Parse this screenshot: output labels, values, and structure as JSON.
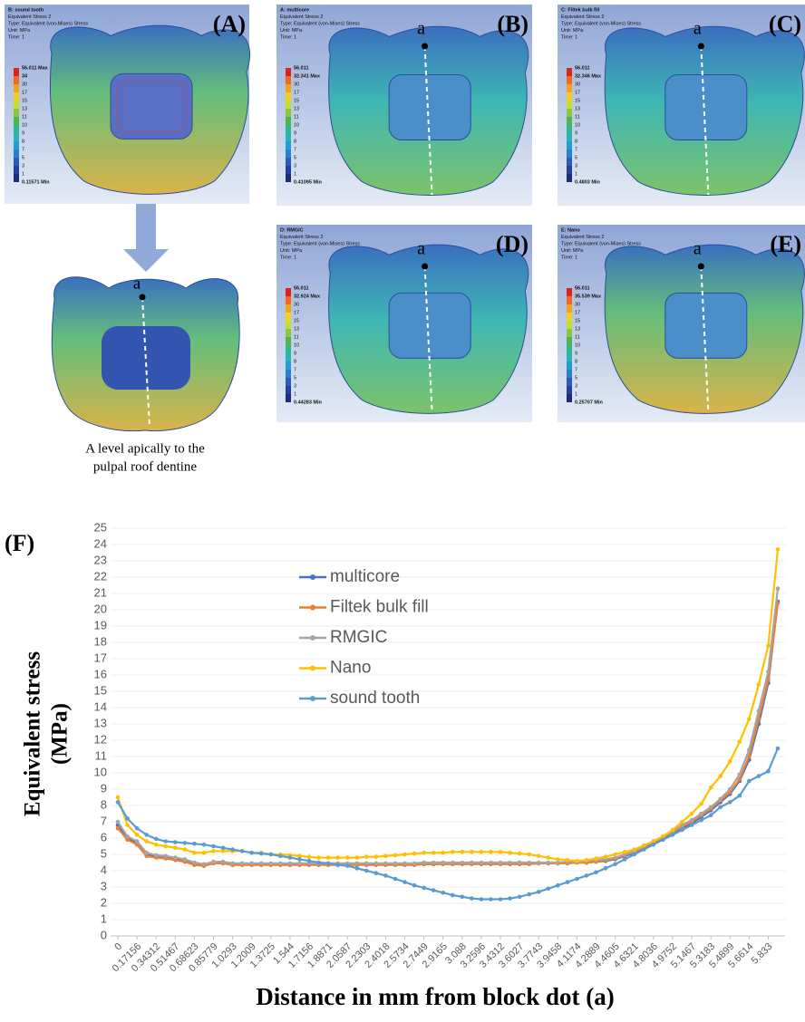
{
  "panels": [
    {
      "letter": "(A)",
      "header": [
        "B: sound tooth",
        "Equivalent Stress 2",
        "Type: Equivalent (von-Mises) Stress",
        "Unit: MPa",
        "Time: 1"
      ],
      "legend": [
        "56.011 Max",
        "34",
        "30",
        "17",
        "15",
        "13",
        "11",
        "10",
        "9",
        "8",
        "7",
        "5",
        "3",
        "1",
        "0.11571 Min"
      ]
    },
    {
      "letter": "(B)",
      "point_label": "a",
      "header": [
        "A: multicore",
        "Equivalent Stress 2",
        "Type: Equivalent (von-Mises) Stress",
        "Unit: MPa",
        "Time: 1"
      ],
      "legend": [
        "56.011",
        "32.341 Max",
        "30",
        "17",
        "15",
        "13",
        "11",
        "10",
        "9",
        "8",
        "7",
        "5",
        "3",
        "1",
        "0.41095 Min"
      ]
    },
    {
      "letter": "(C)",
      "point_label": "a",
      "header": [
        "C: Filtek bulk fill",
        "Equivalent Stress 2",
        "Type: Equivalent (von-Mises) Stress",
        "Unit: MPa",
        "Time: 1"
      ],
      "legend": [
        "56.011",
        "32.346 Max",
        "30",
        "17",
        "15",
        "13",
        "11",
        "10",
        "9",
        "8",
        "7",
        "5",
        "3",
        "1",
        "0.4803 Min"
      ]
    },
    {
      "letter": "(D)",
      "point_label": "a",
      "header": [
        "D: RMGIC",
        "Equivalent Stress 2",
        "Type: Equivalent (von-Mises) Stress",
        "Unit: MPa",
        "Time: 1"
      ],
      "legend": [
        "56.011",
        "32.924 Max",
        "30",
        "17",
        "15",
        "13",
        "11",
        "10",
        "9",
        "8",
        "7",
        "5",
        "3",
        "1",
        "0.44283 Min"
      ]
    },
    {
      "letter": "(E)",
      "point_label": "a",
      "header": [
        "E: Nano",
        "Equivalent Stress 2",
        "Type: Equivalent (von-Mises) Stress",
        "Unit: MPa",
        "Time: 1"
      ],
      "legend": [
        "56.011",
        "35.539 Max",
        "30",
        "17",
        "15",
        "13",
        "11",
        "10",
        "9",
        "8",
        "7",
        "5",
        "3",
        "1",
        "0.25707 Min"
      ]
    }
  ],
  "zoom": {
    "point_label": "a",
    "caption": [
      "A level apically to the",
      "pulpal roof dentine"
    ]
  },
  "chart_data": {
    "type": "line",
    "panel_label": "(F)",
    "xlabel": "Distance in mm from block dot (a)",
    "ylabel": [
      "Equivalent stress",
      "(MPa)"
    ],
    "categories": [
      "0",
      null,
      "0.17156",
      null,
      "0.34312",
      null,
      "0.51467",
      null,
      "0.68623",
      null,
      "0.85779",
      null,
      "1.0293",
      null,
      "1.2009",
      null,
      "1.3725",
      null,
      "1.544",
      null,
      "1.7156",
      null,
      "1.8871",
      null,
      "2.0587",
      null,
      "2.2303",
      null,
      "2.4018",
      null,
      "2.5734",
      null,
      "2.7449",
      null,
      "2.9165",
      null,
      "3.088",
      null,
      "3.2596",
      null,
      "3.4312",
      null,
      "3.6027",
      null,
      "3.7743",
      null,
      "3.9458",
      null,
      "4.1174",
      null,
      "4.2889",
      null,
      "4.4605",
      null,
      "4.6321",
      null,
      "4.8036",
      null,
      "4.9752",
      null,
      "5.1467",
      null,
      "5.3183",
      null,
      "5.4899",
      null,
      "5.6614",
      null,
      "5.833",
      null
    ],
    "ylim": [
      0,
      25
    ],
    "yticks": [
      0,
      1,
      2,
      3,
      4,
      5,
      6,
      7,
      8,
      9,
      10,
      11,
      12,
      13,
      14,
      15,
      16,
      17,
      18,
      19,
      20,
      21,
      22,
      23,
      24,
      25
    ],
    "grid": true,
    "legend_position": "top",
    "series": [
      {
        "name": "multicore",
        "color": "#4472c4",
        "values": [
          6.8,
          6.0,
          5.7,
          5.0,
          4.85,
          4.8,
          4.7,
          4.6,
          4.4,
          4.3,
          4.5,
          4.5,
          4.4,
          4.4,
          4.4,
          4.4,
          4.4,
          4.4,
          4.4,
          4.4,
          4.4,
          4.4,
          4.4,
          4.4,
          4.4,
          4.4,
          4.4,
          4.4,
          4.4,
          4.4,
          4.4,
          4.4,
          4.4,
          4.4,
          4.45,
          4.45,
          4.45,
          4.45,
          4.45,
          4.45,
          4.45,
          4.45,
          4.45,
          4.45,
          4.45,
          4.45,
          4.45,
          4.45,
          4.5,
          4.5,
          4.55,
          4.6,
          4.7,
          4.9,
          5.1,
          5.4,
          5.7,
          6.0,
          6.3,
          6.6,
          6.9,
          7.3,
          7.7,
          8.2,
          8.7,
          9.5,
          10.8,
          13.0,
          15.5,
          20.5
        ]
      },
      {
        "name": "Filtek bulk fill",
        "color": "#ed7d31",
        "values": [
          6.6,
          5.9,
          5.6,
          4.9,
          4.8,
          4.75,
          4.65,
          4.55,
          4.35,
          4.3,
          4.45,
          4.45,
          4.35,
          4.35,
          4.35,
          4.35,
          4.35,
          4.35,
          4.35,
          4.35,
          4.35,
          4.35,
          4.35,
          4.35,
          4.35,
          4.35,
          4.35,
          4.35,
          4.35,
          4.35,
          4.35,
          4.35,
          4.4,
          4.4,
          4.4,
          4.4,
          4.4,
          4.4,
          4.4,
          4.4,
          4.4,
          4.4,
          4.4,
          4.4,
          4.45,
          4.45,
          4.45,
          4.45,
          4.5,
          4.5,
          4.55,
          4.65,
          4.75,
          4.95,
          5.15,
          5.45,
          5.75,
          6.05,
          6.35,
          6.7,
          7.0,
          7.4,
          7.8,
          8.3,
          8.8,
          9.6,
          11.0,
          13.3,
          15.7,
          20.4
        ]
      },
      {
        "name": "RMGIC",
        "color": "#a5a5a5",
        "values": [
          7.0,
          6.1,
          5.8,
          5.1,
          4.95,
          4.9,
          4.8,
          4.7,
          4.5,
          4.4,
          4.55,
          4.55,
          4.45,
          4.45,
          4.45,
          4.45,
          4.45,
          4.45,
          4.45,
          4.45,
          4.45,
          4.45,
          4.45,
          4.45,
          4.45,
          4.45,
          4.45,
          4.45,
          4.45,
          4.45,
          4.45,
          4.45,
          4.5,
          4.5,
          4.5,
          4.5,
          4.5,
          4.5,
          4.5,
          4.5,
          4.5,
          4.5,
          4.5,
          4.5,
          4.5,
          4.5,
          4.5,
          4.55,
          4.55,
          4.6,
          4.65,
          4.7,
          4.8,
          5.0,
          5.2,
          5.5,
          5.8,
          6.1,
          6.4,
          6.8,
          7.1,
          7.5,
          7.9,
          8.4,
          9.0,
          9.9,
          11.4,
          13.8,
          16.2,
          21.3
        ]
      },
      {
        "name": "Nano",
        "color": "#ffc000",
        "values": [
          8.5,
          6.8,
          6.2,
          5.8,
          5.6,
          5.5,
          5.4,
          5.3,
          5.1,
          5.1,
          5.2,
          5.2,
          5.2,
          5.2,
          5.1,
          5.1,
          5.0,
          5.0,
          4.95,
          4.9,
          4.85,
          4.8,
          4.8,
          4.8,
          4.8,
          4.8,
          4.85,
          4.85,
          4.9,
          4.95,
          5.0,
          5.05,
          5.1,
          5.1,
          5.1,
          5.15,
          5.15,
          5.15,
          5.15,
          5.15,
          5.15,
          5.1,
          5.05,
          5.0,
          4.9,
          4.8,
          4.7,
          4.65,
          4.6,
          4.65,
          4.75,
          4.85,
          5.0,
          5.15,
          5.3,
          5.55,
          5.8,
          6.1,
          6.5,
          7.0,
          7.5,
          8.1,
          9.1,
          9.8,
          10.7,
          11.9,
          13.3,
          15.4,
          17.8,
          23.7
        ]
      },
      {
        "name": "sound tooth",
        "color": "#5b9bd5",
        "values": [
          8.2,
          7.2,
          6.6,
          6.2,
          5.95,
          5.8,
          5.75,
          5.7,
          5.65,
          5.6,
          5.5,
          5.4,
          5.3,
          5.2,
          5.1,
          5.05,
          5.0,
          4.9,
          4.8,
          4.7,
          4.6,
          4.5,
          4.45,
          4.35,
          4.3,
          4.15,
          4.0,
          3.85,
          3.7,
          3.5,
          3.3,
          3.1,
          2.95,
          2.8,
          2.65,
          2.5,
          2.4,
          2.3,
          2.25,
          2.25,
          2.25,
          2.3,
          2.4,
          2.55,
          2.7,
          2.9,
          3.1,
          3.3,
          3.5,
          3.7,
          3.9,
          4.15,
          4.4,
          4.7,
          5.0,
          5.3,
          5.6,
          5.9,
          6.2,
          6.5,
          6.8,
          7.1,
          7.4,
          7.9,
          8.2,
          8.6,
          9.5,
          9.8,
          10.1,
          11.5
        ]
      }
    ]
  }
}
